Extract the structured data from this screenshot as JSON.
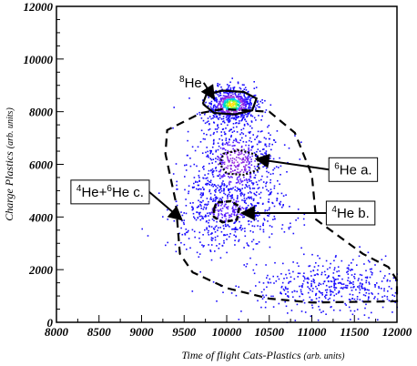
{
  "chart_data": {
    "type": "scatter",
    "title": "",
    "xlabel": "Time of flight Cats-Plastics",
    "xlabel_unit": "(arb. units)",
    "ylabel": "Charge Plastics",
    "ylabel_unit": "(arb. units)",
    "xlim": [
      8000,
      12000
    ],
    "ylim": [
      0,
      12000
    ],
    "xticks": [
      "8000",
      "8500",
      "9000",
      "9500",
      "10000",
      "10500",
      "11000",
      "11500",
      "12000"
    ],
    "yticks": [
      "0",
      "2000",
      "4000",
      "6000",
      "8000",
      "10000",
      "12000"
    ],
    "colormap": [
      "#1a0dff",
      "#5a1dff",
      "#8a2be2",
      "#b040e0",
      "#00c8ff",
      "#00e0a0",
      "#80ff40",
      "#ffe000"
    ],
    "density_clusters": [
      {
        "name": "8He core",
        "x": 10050,
        "y": 8300,
        "sx": 110,
        "sy": 260,
        "weight": 1.0
      },
      {
        "name": "6He",
        "x": 10100,
        "y": 6100,
        "sx": 200,
        "sy": 700,
        "weight": 0.55
      },
      {
        "name": "4He",
        "x": 10000,
        "y": 4200,
        "sx": 260,
        "sy": 500,
        "weight": 0.35
      },
      {
        "name": "tail",
        "x": 11300,
        "y": 1400,
        "sx": 450,
        "sy": 400,
        "weight": 0.25
      }
    ],
    "contours": [
      {
        "style": "solid",
        "points": [
          [
            9720,
            8300
          ],
          [
            9760,
            8650
          ],
          [
            9950,
            8800
          ],
          [
            10200,
            8750
          ],
          [
            10350,
            8500
          ],
          [
            10300,
            8050
          ],
          [
            10100,
            7900
          ],
          [
            9850,
            7950
          ],
          [
            9720,
            8300
          ]
        ]
      },
      {
        "style": "dotted",
        "points": [
          [
            9920,
            6000
          ],
          [
            9960,
            6400
          ],
          [
            10150,
            6550
          ],
          [
            10360,
            6350
          ],
          [
            10380,
            5800
          ],
          [
            10200,
            5600
          ],
          [
            10000,
            5650
          ],
          [
            9920,
            6000
          ]
        ]
      },
      {
        "style": "dashed-thick",
        "points": [
          [
            9850,
            4300
          ],
          [
            9880,
            4550
          ],
          [
            10050,
            4600
          ],
          [
            10150,
            4400
          ],
          [
            10120,
            3900
          ],
          [
            9950,
            3800
          ],
          [
            9850,
            4000
          ],
          [
            9850,
            4300
          ]
        ]
      },
      {
        "style": "dashed",
        "points": [
          [
            9700,
            7950
          ],
          [
            9950,
            8100
          ],
          [
            10500,
            8000
          ],
          [
            10800,
            7200
          ],
          [
            11000,
            5600
          ],
          [
            11050,
            3900
          ],
          [
            11600,
            2600
          ],
          [
            11900,
            2100
          ],
          [
            12000,
            1600
          ],
          [
            12000,
            800
          ],
          [
            11000,
            750
          ],
          [
            10500,
            900
          ],
          [
            10000,
            1300
          ],
          [
            9600,
            1900
          ],
          [
            9450,
            2600
          ],
          [
            9400,
            4600
          ],
          [
            9280,
            6400
          ],
          [
            9300,
            7300
          ],
          [
            9700,
            7950
          ]
        ]
      }
    ],
    "annotations": [
      {
        "text": "He",
        "sup": "8",
        "boxed": false,
        "label_x": 9380,
        "label_y": 9100,
        "arrow_to": [
          9850,
          8500
        ]
      },
      {
        "text": "He a.",
        "sup": "6",
        "boxed": true,
        "label_x": 11200,
        "label_y": 5800,
        "arrow_to": [
          10350,
          6200
        ]
      },
      {
        "text": "He b.",
        "sup": "4",
        "boxed": true,
        "label_x": 11170,
        "label_y": 4150,
        "arrow_to": [
          10180,
          4150
        ]
      },
      {
        "text": "He+",
        "sup": "4",
        "text2": "He c.",
        "sup2": "6",
        "boxed": true,
        "label_x": 8170,
        "label_y": 4950,
        "arrow_to": [
          9470,
          3900
        ]
      }
    ]
  }
}
